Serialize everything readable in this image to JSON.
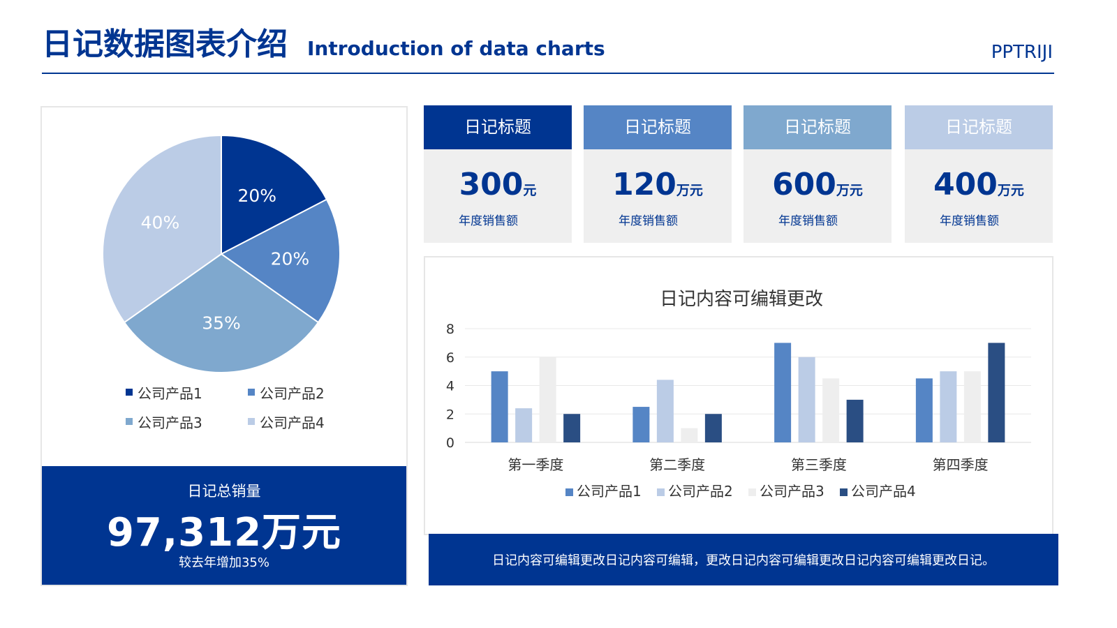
{
  "header": {
    "title": "日记数据图表介绍",
    "subtitle": "Introduction of data charts",
    "brand": "PPTRIJI"
  },
  "colors": {
    "navy": "#003591",
    "blue": "#5585C5",
    "steel": "#7FA8CE",
    "pale": "#BBCCE6",
    "light": "#EEEEEE",
    "dark": "#2A4E83"
  },
  "cards": [
    {
      "title": "日记标题",
      "value": "300",
      "unit": "元",
      "caption": "年度销售额",
      "color": "#003591"
    },
    {
      "title": "日记标题",
      "value": "120",
      "unit": "万元",
      "caption": "年度销售额",
      "color": "#5585C5"
    },
    {
      "title": "日记标题",
      "value": "600",
      "unit": "万元",
      "caption": "年度销售额",
      "color": "#7FA8CE"
    },
    {
      "title": "日记标题",
      "value": "400",
      "unit": "万元",
      "caption": "年度销售额",
      "color": "#BBCCE6"
    }
  ],
  "total": {
    "label": "日记总销量",
    "value": "97,312万元",
    "note": "较去年增加35%"
  },
  "note": "日记内容可编辑更改日记内容可编辑，更改日记内容可编辑更改日记内容可编辑更改日记。",
  "chart_data": [
    {
      "type": "pie",
      "title": "",
      "slices": [
        {
          "label": "公司产品1",
          "value": 20,
          "display": "20%",
          "color": "#003591"
        },
        {
          "label": "公司产品2",
          "value": 20,
          "display": "20%",
          "color": "#5585C5"
        },
        {
          "label": "公司产品3",
          "value": 35,
          "display": "35%",
          "color": "#7FA8CE"
        },
        {
          "label": "公司产品4",
          "value": 40,
          "display": "40%",
          "color": "#BBCCE6"
        }
      ],
      "legend": "bottom"
    },
    {
      "type": "bar",
      "title": "日记内容可编辑更改",
      "categories": [
        "第一季度",
        "第二季度",
        "第三季度",
        "第四季度"
      ],
      "series": [
        {
          "name": "公司产品1",
          "values": [
            5,
            2.5,
            7,
            4.5
          ],
          "color": "#5585C5"
        },
        {
          "name": "公司产品2",
          "values": [
            2.4,
            4.4,
            6,
            5
          ],
          "color": "#BBCCE6"
        },
        {
          "name": "公司产品3",
          "values": [
            6,
            1,
            4.5,
            5
          ],
          "color": "#EEEEEE"
        },
        {
          "name": "公司产品4",
          "values": [
            2,
            2,
            3,
            7
          ],
          "color": "#2A4E83"
        }
      ],
      "ylim": [
        0,
        8
      ],
      "yticks": [
        0,
        2,
        4,
        6,
        8
      ],
      "grid": true,
      "legend": "bottom"
    }
  ]
}
